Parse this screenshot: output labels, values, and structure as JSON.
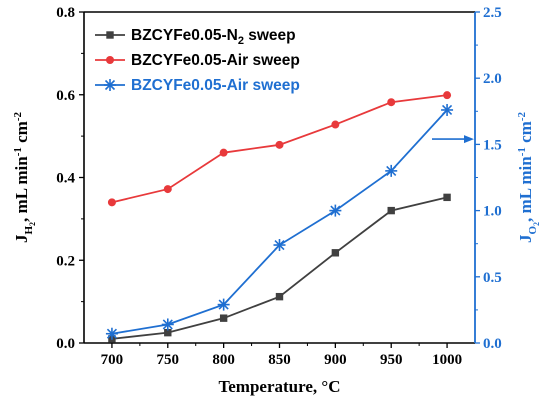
{
  "chart_data": {
    "type": "line",
    "x": [
      700,
      750,
      800,
      850,
      900,
      950,
      1000
    ],
    "xlabel": "Temperature, °C",
    "xlim": [
      675,
      1025
    ],
    "xticks": [
      "700",
      "750",
      "800",
      "850",
      "900",
      "950",
      "1000"
    ],
    "ylabel_left": {
      "main": "J",
      "sub": "H",
      "subsub": "2",
      "rest": ", mL min",
      "sup": "-1",
      "tail": " cm",
      "sup2": "-2"
    },
    "ylim_left": [
      0,
      0.8
    ],
    "yticks_left": [
      "0.0",
      "0.2",
      "0.4",
      "0.6",
      "0.8"
    ],
    "ylabel_right": {
      "main": "J",
      "sub": "O",
      "subsub": "2",
      "rest": ", mL min",
      "sup": "-1",
      "tail": " cm",
      "sup2": "-2"
    },
    "ylim_right": [
      0,
      2.5
    ],
    "yticks_right": [
      "0.0",
      "0.5",
      "1.0",
      "1.5",
      "2.0",
      "2.5"
    ],
    "right_axis_color": "#1f6fd1",
    "series": [
      {
        "name_main": "BZCYFe0.05-N",
        "name_sub": "2",
        "name_tail": " sweep",
        "axis": "left",
        "marker": "square",
        "color": "#404040",
        "values": [
          0.01,
          0.025,
          0.06,
          0.112,
          0.218,
          0.32,
          0.352
        ]
      },
      {
        "name_main": "BZCYFe0.05-Air sweep",
        "name_sub": "",
        "name_tail": "",
        "axis": "left",
        "marker": "circle",
        "color": "#e8393b",
        "values": [
          0.34,
          0.372,
          0.46,
          0.479,
          0.528,
          0.582,
          0.599
        ]
      },
      {
        "name_main": "BZCYFe0.05-Air sweep",
        "name_sub": "",
        "name_tail": "",
        "axis": "right",
        "marker": "star",
        "color": "#1f6fd1",
        "values": [
          0.07,
          0.14,
          0.29,
          0.74,
          1.0,
          1.3,
          1.76
        ]
      }
    ],
    "legend_position": "top-left",
    "grid": false
  }
}
